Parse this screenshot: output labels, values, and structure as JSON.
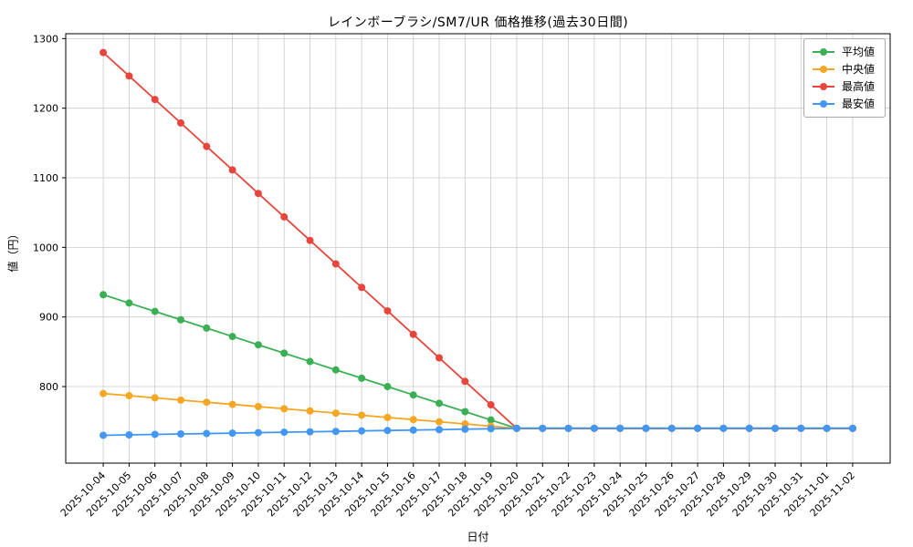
{
  "chart_data": {
    "type": "line",
    "title": "レインボーブラシ/SM7/UR 価格推移(過去30日間)",
    "xlabel": "日付",
    "ylabel": "値（円）",
    "ylim": [
      690,
      1307
    ],
    "yticks": [
      800,
      900,
      1000,
      1100,
      1200,
      1300
    ],
    "grid": true,
    "grid_color": "#cccccc",
    "legend_position": "top-right",
    "categories": [
      "2025-10-04",
      "2025-10-05",
      "2025-10-06",
      "2025-10-07",
      "2025-10-08",
      "2025-10-09",
      "2025-10-10",
      "2025-10-11",
      "2025-10-12",
      "2025-10-13",
      "2025-10-14",
      "2025-10-15",
      "2025-10-16",
      "2025-10-17",
      "2025-10-18",
      "2025-10-19",
      "2025-10-20",
      "2025-10-21",
      "2025-10-22",
      "2025-10-23",
      "2025-10-24",
      "2025-10-25",
      "2025-10-26",
      "2025-10-27",
      "2025-10-28",
      "2025-10-29",
      "2025-10-30",
      "2025-10-31",
      "2025-11-01",
      "2025-11-02"
    ],
    "series": [
      {
        "name": "平均値",
        "color": "#3aaf54",
        "values": [
          932,
          920,
          908,
          896,
          884,
          872,
          860,
          848,
          836,
          824,
          812,
          800,
          788,
          776,
          764,
          752,
          740,
          740,
          740,
          740,
          740,
          740,
          740,
          740,
          740,
          740,
          740,
          740,
          740,
          740
        ]
      },
      {
        "name": "中央値",
        "color": "#f5a623",
        "values": [
          790,
          786.9,
          783.8,
          780.6,
          777.5,
          774.4,
          771.3,
          768.1,
          765,
          761.9,
          758.8,
          755.6,
          752.5,
          749.4,
          746.3,
          743.1,
          740,
          740,
          740,
          740,
          740,
          740,
          740,
          740,
          740,
          740,
          740,
          740,
          740,
          740
        ]
      },
      {
        "name": "最高値",
        "color": "#e8463c",
        "values": [
          1280,
          1246.3,
          1212.5,
          1178.8,
          1145,
          1111.3,
          1077.5,
          1043.8,
          1010,
          976.3,
          942.5,
          908.8,
          875,
          841.3,
          807.5,
          773.8,
          740,
          740,
          740,
          740,
          740,
          740,
          740,
          740,
          740,
          740,
          740,
          740,
          740,
          740
        ]
      },
      {
        "name": "最安値",
        "color": "#4197f2",
        "values": [
          730,
          730.6,
          731.3,
          731.9,
          732.5,
          733.1,
          733.8,
          734.4,
          735,
          735.6,
          736.3,
          736.9,
          737.5,
          738.1,
          738.8,
          739.4,
          740,
          740,
          740,
          740,
          740,
          740,
          740,
          740,
          740,
          740,
          740,
          740,
          740,
          740
        ]
      }
    ]
  }
}
